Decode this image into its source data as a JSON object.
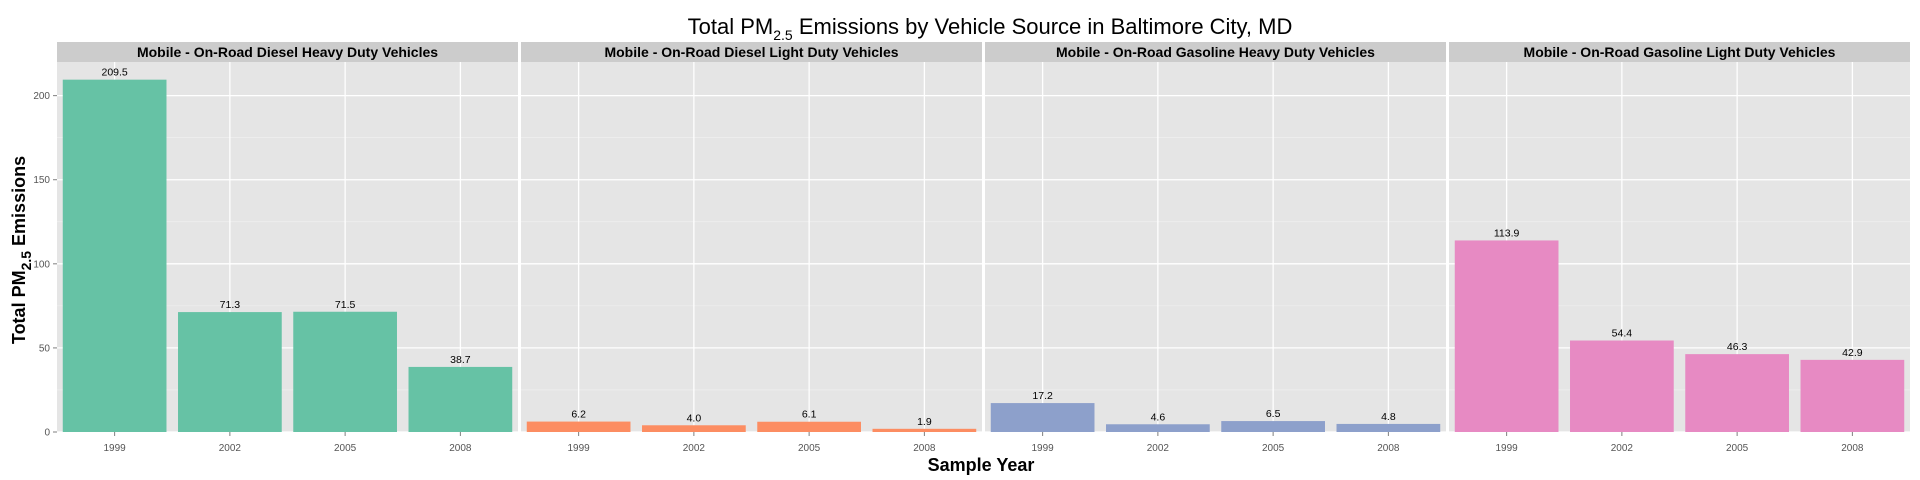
{
  "chart_data": {
    "type": "bar",
    "title": "Total PM₂.₅ Emissions by Vehicle Source in Baltimore City, MD",
    "title_parts": {
      "pre": "Total PM",
      "sub": "2.5",
      "post": " Emissions by Vehicle Source in Baltimore City, MD"
    },
    "xlabel": "Sample Year",
    "ylabel": "Total PM₂.₅ Emissions",
    "ylabel_parts": {
      "pre": "Total PM",
      "sub": "2.5",
      "post": " Emissions"
    },
    "categories": [
      "1999",
      "2002",
      "2005",
      "2008"
    ],
    "ylim": [
      0,
      220
    ],
    "yticks": [
      0,
      50,
      100,
      150,
      200
    ],
    "grid": true,
    "panels": [
      {
        "name": "Mobile - On-Road Diesel Heavy Duty Vehicles",
        "color": "#66c2a5",
        "values": [
          209.5,
          71.3,
          71.5,
          38.7
        ],
        "labels": [
          "209.5",
          "71.3",
          "71.5",
          "38.7"
        ]
      },
      {
        "name": "Mobile - On-Road Diesel Light Duty Vehicles",
        "color": "#fc8d62",
        "values": [
          6.2,
          4.0,
          6.1,
          1.9
        ],
        "labels": [
          "6.2",
          "4.0",
          "6.1",
          "1.9"
        ]
      },
      {
        "name": "Mobile - On-Road Gasoline Heavy Duty Vehicles",
        "color": "#8da0cb",
        "values": [
          17.2,
          4.6,
          6.5,
          4.8
        ],
        "labels": [
          "17.2",
          "4.6",
          "6.5",
          "4.8"
        ]
      },
      {
        "name": "Mobile - On-Road Gasoline Light Duty Vehicles",
        "color": "#e78ac3",
        "values": [
          113.9,
          54.4,
          46.3,
          42.9
        ],
        "labels": [
          "113.9",
          "54.4",
          "46.3",
          "42.9"
        ]
      }
    ]
  }
}
